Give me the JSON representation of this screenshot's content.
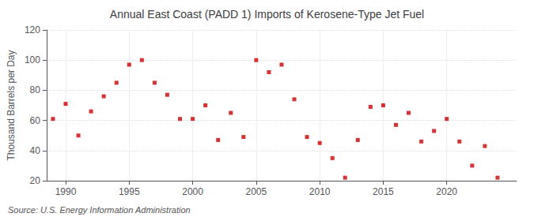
{
  "chart_data": {
    "type": "scatter",
    "title": "Annual East Coast (PADD 1) Imports of Kerosene-Type Jet Fuel",
    "ylabel": "Thousand Barrels per Day",
    "annotations": [
      "Source: U.S. Energy Information Administration"
    ],
    "x": [
      1989,
      1990,
      1991,
      1992,
      1993,
      1994,
      1995,
      1996,
      1997,
      1998,
      1999,
      2000,
      2001,
      2002,
      2003,
      2004,
      2005,
      2006,
      2007,
      2008,
      2009,
      2010,
      2011,
      2012,
      2013,
      2014,
      2015,
      2016,
      2017,
      2018,
      2019,
      2020,
      2021,
      2022,
      2023,
      2024
    ],
    "values": [
      61,
      71,
      50,
      66,
      76,
      85,
      97,
      100,
      85,
      77,
      61,
      61,
      70,
      47,
      65,
      49,
      100,
      92,
      97,
      74,
      49,
      45,
      35,
      22,
      47,
      69,
      70,
      57,
      65,
      46,
      53,
      61,
      46,
      30,
      43,
      22
    ],
    "color": "#cc0000",
    "marker": "square",
    "xlim": [
      1988.5,
      2025.5
    ],
    "xticks": [
      1990,
      1995,
      2000,
      2005,
      2010,
      2015,
      2020
    ],
    "ylim": [
      20,
      120
    ],
    "yticks": [
      20,
      40,
      60,
      80,
      100,
      120
    ],
    "grid": true
  }
}
